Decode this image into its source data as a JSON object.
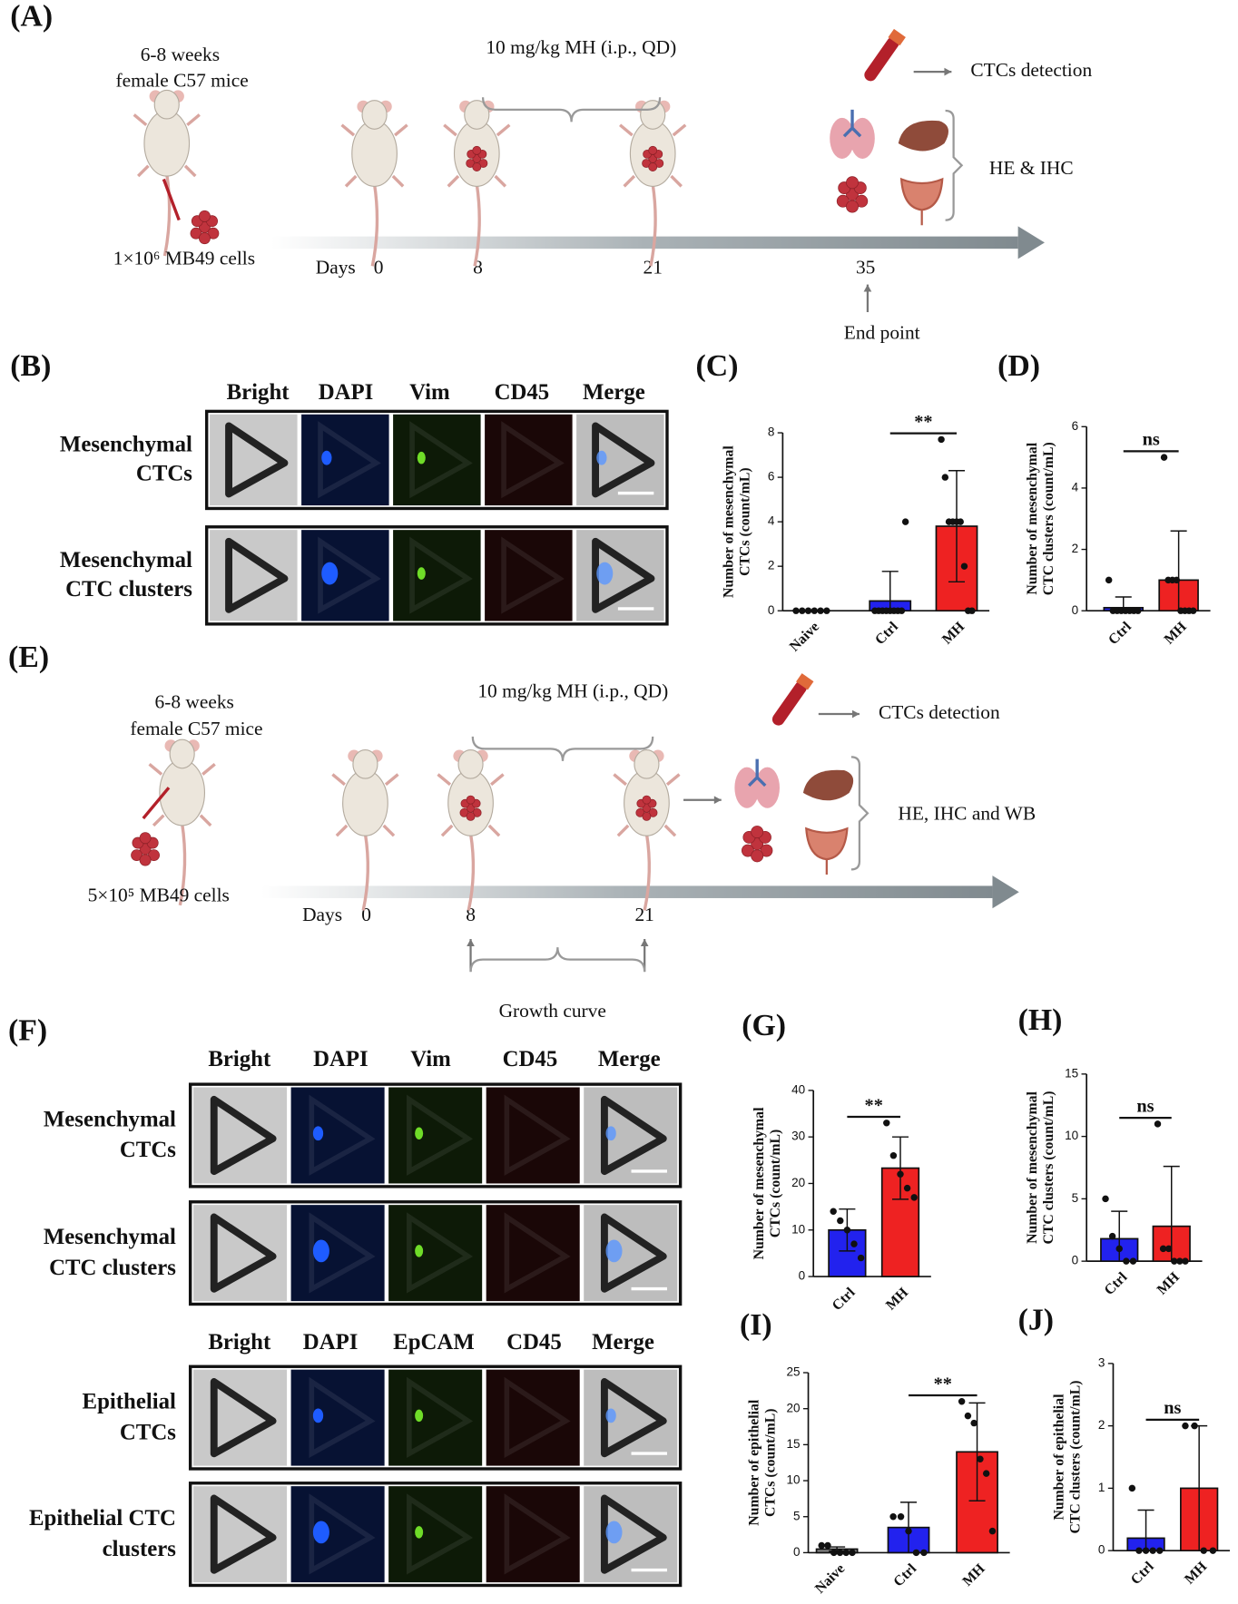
{
  "panel_labels": [
    "(A)",
    "(B)",
    "(C)",
    "(D)",
    "(E)",
    "(F)",
    "(G)",
    "(H)",
    "(I)",
    "(J)"
  ],
  "panel_a": {
    "age": "6-8 weeks",
    "mice": "female C57 mice",
    "dose": "10 mg/kg MH (i.p., QD)",
    "detection": "CTCs detection",
    "analysis": "HE & IHC",
    "cells": "1×10⁶ MB49 cells",
    "days_label": "Days",
    "days": [
      "0",
      "8",
      "21",
      "35"
    ],
    "end": "End point"
  },
  "panel_e": {
    "age": "6-8 weeks",
    "mice": "female C57 mice",
    "dose": "10 mg/kg MH (i.p., QD)",
    "detection": "CTCs detection",
    "analysis": "HE, IHC and WB",
    "cells": "5×10⁵ MB49 cells",
    "days_label": "Days",
    "days": [
      "0",
      "8",
      "21"
    ],
    "growth": "Growth curve"
  },
  "panel_b": {
    "channels": [
      "Bright",
      "DAPI",
      "Vim",
      "CD45",
      "Merge"
    ],
    "rows": [
      [
        "Mesenchymal",
        "CTCs"
      ],
      [
        "Mesenchymal",
        "CTC clusters"
      ]
    ]
  },
  "panel_f": {
    "blocks": [
      {
        "channels": [
          "Bright",
          "DAPI",
          "Vim",
          "CD45",
          "Merge"
        ],
        "rows": [
          [
            "Mesenchymal",
            "CTCs"
          ],
          [
            "Mesenchymal",
            "CTC clusters"
          ]
        ]
      },
      {
        "channels": [
          "Bright",
          "DAPI",
          "EpCAM",
          "CD45",
          "Merge"
        ],
        "rows": [
          [
            "Epithelial",
            "CTCs"
          ],
          [
            "Epithelial CTC",
            "clusters"
          ]
        ]
      }
    ]
  },
  "chart_data": [
    {
      "type": "bar",
      "ylabel": [
        "Number of mesenchymal",
        "CTCs (count/mL)"
      ],
      "categories": [
        "Naive",
        "Ctrl",
        "MH"
      ],
      "values": [
        0,
        0.44,
        3.8
      ],
      "errors": [
        0,
        1.33,
        2.5
      ],
      "points": [
        [
          0,
          0,
          0,
          0,
          0,
          0
        ],
        [
          0,
          0,
          0,
          0,
          0,
          0,
          0,
          0,
          4
        ],
        [
          7.7,
          6,
          4,
          4,
          4,
          4,
          2,
          0,
          0
        ]
      ],
      "colors": [
        "#808080",
        "#2222ee",
        "#ee2222"
      ],
      "ylim": [
        0,
        8
      ],
      "yticks": [
        0,
        2,
        4,
        6,
        8
      ],
      "annotation": "**"
    },
    {
      "type": "bar",
      "ylabel": [
        "Number of mesenchymal",
        "CTC clusters (count/mL)"
      ],
      "categories": [
        "Ctrl",
        "MH"
      ],
      "values": [
        0.1,
        1.0
      ],
      "errors": [
        0.35,
        1.6
      ],
      "points": [
        [
          1,
          0,
          0,
          0,
          0,
          0,
          0,
          0
        ],
        [
          5,
          1,
          1,
          1,
          0,
          0,
          0,
          0
        ]
      ],
      "colors": [
        "#2222ee",
        "#ee2222"
      ],
      "ylim": [
        0,
        6
      ],
      "yticks": [
        0,
        2,
        4,
        6
      ],
      "annotation": "ns"
    },
    {
      "type": "bar",
      "ylabel": [
        "Number of mesenchymal",
        "CTCs (count/mL)"
      ],
      "categories": [
        "Ctrl",
        "MH"
      ],
      "values": [
        10,
        23.3
      ],
      "errors": [
        4.5,
        6.7
      ],
      "points": [
        [
          14,
          12,
          10,
          7,
          4
        ],
        [
          33,
          26,
          22,
          19,
          17
        ]
      ],
      "colors": [
        "#2222ee",
        "#ee2222"
      ],
      "ylim": [
        0,
        40
      ],
      "yticks": [
        0,
        10,
        20,
        30,
        40
      ],
      "annotation": "**"
    },
    {
      "type": "bar",
      "ylabel": [
        "Number of mesenchymal",
        "CTC clusters (count/mL)"
      ],
      "categories": [
        "Ctrl",
        "MH"
      ],
      "values": [
        1.8,
        2.8
      ],
      "errors": [
        2.2,
        4.8
      ],
      "points": [
        [
          5,
          2,
          1,
          0,
          0
        ],
        [
          11,
          1,
          1,
          0,
          0,
          0
        ]
      ],
      "colors": [
        "#2222ee",
        "#ee2222"
      ],
      "ylim": [
        0,
        15
      ],
      "yticks": [
        0,
        5,
        10,
        15
      ],
      "annotation": "ns"
    },
    {
      "type": "bar",
      "ylabel": [
        "Number of epithelial",
        "CTCs (count/mL)"
      ],
      "categories": [
        "Naive",
        "Ctrl",
        "MH"
      ],
      "values": [
        0.5,
        3.5,
        14
      ],
      "errors": [
        0.3,
        3.5,
        6.8
      ],
      "points": [
        [
          1,
          1,
          0,
          0,
          0,
          0
        ],
        [
          5,
          5,
          3,
          0,
          0
        ],
        [
          21,
          19,
          18,
          13,
          11,
          3
        ]
      ],
      "colors": [
        "#808080",
        "#2222ee",
        "#ee2222"
      ],
      "ylim": [
        0,
        25
      ],
      "yticks": [
        0,
        5,
        10,
        15,
        20,
        25
      ],
      "annotation": "**"
    },
    {
      "type": "bar",
      "ylabel": [
        "Number of epithelial",
        "CTC clusters (count/mL)"
      ],
      "categories": [
        "Ctrl",
        "MH"
      ],
      "values": [
        0.2,
        1.0
      ],
      "errors": [
        0.45,
        1.0
      ],
      "points": [
        [
          1,
          0,
          0,
          0,
          0
        ],
        [
          2,
          2,
          0,
          0
        ]
      ],
      "colors": [
        "#2222ee",
        "#ee2222"
      ],
      "ylim": [
        0,
        3
      ],
      "yticks": [
        0,
        1,
        2,
        3
      ],
      "annotation": "ns"
    }
  ]
}
